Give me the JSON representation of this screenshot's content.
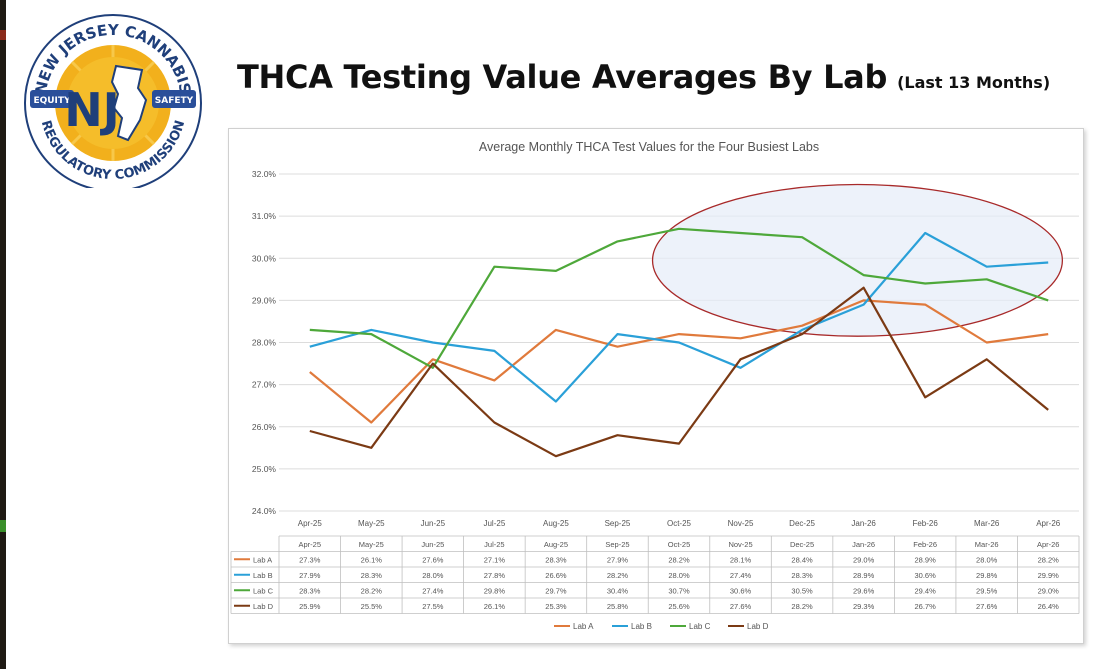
{
  "header": {
    "title": "THCA Testing Value Averages By Lab",
    "subtitle": "(Last 13 Months)"
  },
  "logo": {
    "top_text": "NEW JERSEY CANNABIS",
    "bottom_text": "REGULATORY COMMISSION",
    "left_badge": "EQUITY",
    "right_badge": "SAFETY",
    "center_mark": "NJ"
  },
  "chart_data": {
    "type": "line",
    "title": "Average Monthly THCA Test Values for the Four Busiest Labs",
    "categories": [
      "Apr-25",
      "May-25",
      "Jun-25",
      "Jul-25",
      "Aug-25",
      "Sep-25",
      "Oct-25",
      "Nov-25",
      "Dec-25",
      "Jan-26",
      "Feb-26",
      "Mar-26",
      "Apr-26"
    ],
    "ylim": [
      24.0,
      32.0
    ],
    "yticks": [
      "24.0%",
      "25.0%",
      "26.0%",
      "27.0%",
      "28.0%",
      "29.0%",
      "30.0%",
      "31.0%",
      "32.0%"
    ],
    "grid": true,
    "legend_position": "bottom",
    "series": [
      {
        "name": "Lab A",
        "color": "#e07a3c",
        "values": [
          27.3,
          26.1,
          27.6,
          27.1,
          28.3,
          27.9,
          28.2,
          28.1,
          28.4,
          29.0,
          28.9,
          28.0,
          28.2
        ],
        "labels": [
          "27.3%",
          "26.1%",
          "27.6%",
          "27.1%",
          "28.3%",
          "27.9%",
          "28.2%",
          "28.1%",
          "28.4%",
          "29.0%",
          "28.9%",
          "28.0%",
          "28.2%"
        ]
      },
      {
        "name": "Lab B",
        "color": "#2aa0d8",
        "values": [
          27.9,
          28.3,
          28.0,
          27.8,
          26.6,
          28.2,
          28.0,
          27.4,
          28.3,
          28.9,
          30.6,
          29.8,
          29.9
        ],
        "labels": [
          "27.9%",
          "28.3%",
          "28.0%",
          "27.8%",
          "26.6%",
          "28.2%",
          "28.0%",
          "27.4%",
          "28.3%",
          "28.9%",
          "30.6%",
          "29.8%",
          "29.9%"
        ]
      },
      {
        "name": "Lab C",
        "color": "#4ea83a",
        "values": [
          28.3,
          28.2,
          27.4,
          29.8,
          29.7,
          30.4,
          30.7,
          30.6,
          30.5,
          29.6,
          29.4,
          29.5,
          29.0
        ],
        "labels": [
          "28.3%",
          "28.2%",
          "27.4%",
          "29.8%",
          "29.7%",
          "30.4%",
          "30.7%",
          "30.6%",
          "30.5%",
          "29.6%",
          "29.4%",
          "29.5%",
          "29.0%"
        ]
      },
      {
        "name": "Lab D",
        "color": "#7b3a14",
        "values": [
          25.9,
          25.5,
          27.5,
          26.1,
          25.3,
          25.8,
          25.6,
          27.6,
          28.2,
          29.3,
          26.7,
          27.6,
          26.4
        ],
        "labels": [
          "25.9%",
          "25.5%",
          "27.5%",
          "26.1%",
          "25.3%",
          "25.8%",
          "25.6%",
          "27.6%",
          "28.2%",
          "29.3%",
          "26.7%",
          "27.6%",
          "26.4%"
        ]
      }
    ],
    "annotation": {
      "shape": "ellipse",
      "stroke": "#a82a2a",
      "fill": "#e6edf8"
    }
  }
}
